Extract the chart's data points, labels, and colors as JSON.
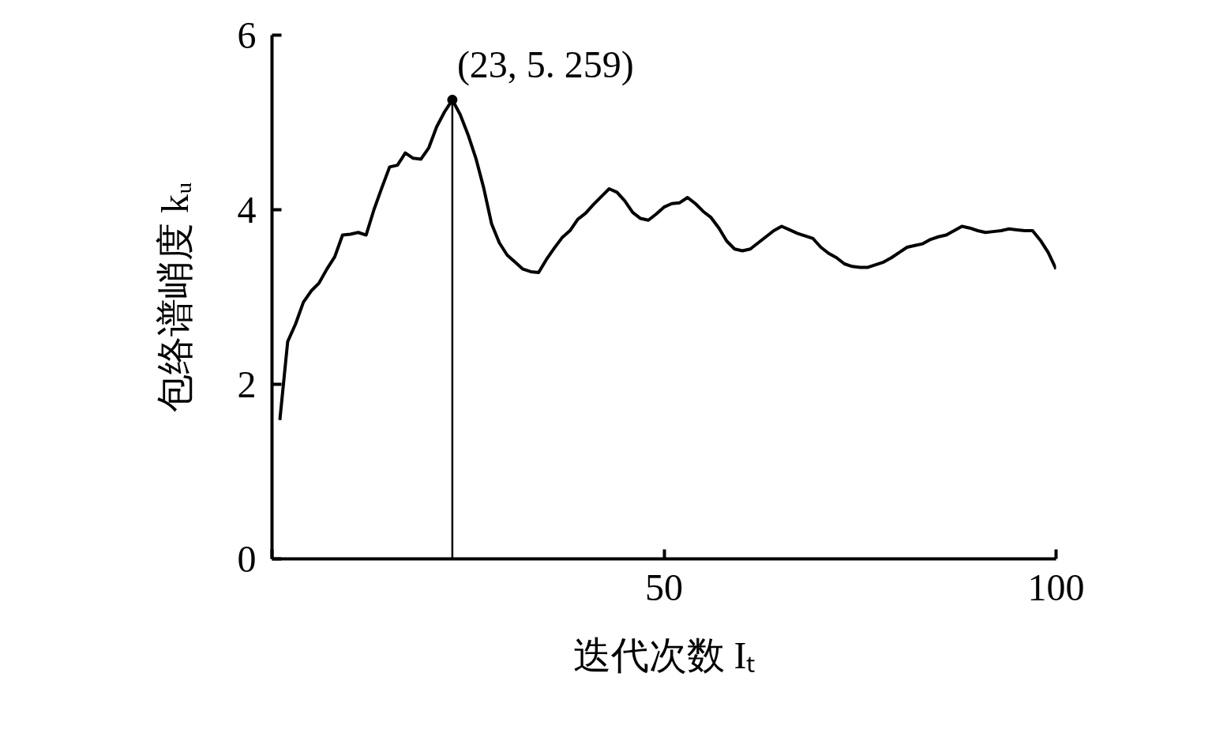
{
  "chart_data": {
    "type": "line",
    "xlabel": "迭代次数 Iₜ",
    "ylabel": "包络谱峭度 kᵤ",
    "x": [
      1,
      2,
      3,
      4,
      5,
      6,
      7,
      8,
      9,
      10,
      11,
      12,
      13,
      14,
      15,
      16,
      17,
      18,
      19,
      20,
      21,
      22,
      23,
      24,
      25,
      26,
      27,
      28,
      29,
      30,
      31,
      32,
      33,
      34,
      35,
      36,
      37,
      38,
      39,
      40,
      41,
      42,
      43,
      44,
      45,
      46,
      47,
      48,
      49,
      50,
      51,
      52,
      53,
      54,
      55,
      56,
      57,
      58,
      59,
      60,
      61,
      62,
      63,
      64,
      65,
      66,
      67,
      68,
      69,
      70,
      71,
      72,
      73,
      74,
      75,
      76,
      77,
      78,
      79,
      80,
      81,
      82,
      83,
      84,
      85,
      86,
      87,
      88,
      89,
      90,
      91,
      92,
      93,
      94,
      95,
      96,
      97,
      98,
      99,
      100
    ],
    "series": [
      {
        "color": "#000000",
        "values": [
          1.59,
          2.49,
          2.69,
          2.94,
          3.07,
          3.16,
          3.32,
          3.46,
          3.71,
          3.72,
          3.74,
          3.71,
          4.0,
          4.25,
          4.49,
          4.51,
          4.65,
          4.59,
          4.58,
          4.71,
          4.95,
          5.12,
          5.259,
          5.09,
          4.86,
          4.59,
          4.25,
          3.84,
          3.62,
          3.48,
          3.4,
          3.32,
          3.29,
          3.28,
          3.43,
          3.56,
          3.68,
          3.76,
          3.89,
          3.96,
          4.06,
          4.15,
          4.24,
          4.2,
          4.1,
          3.97,
          3.9,
          3.88,
          3.95,
          4.03,
          4.07,
          4.08,
          4.14,
          4.07,
          3.98,
          3.91,
          3.79,
          3.64,
          3.55,
          3.53,
          3.55,
          3.62,
          3.69,
          3.76,
          3.81,
          3.77,
          3.73,
          3.7,
          3.67,
          3.57,
          3.5,
          3.45,
          3.38,
          3.35,
          3.34,
          3.34,
          3.37,
          3.4,
          3.45,
          3.51,
          3.57,
          3.59,
          3.61,
          3.66,
          3.69,
          3.71,
          3.76,
          3.81,
          3.79,
          3.76,
          3.74,
          3.75,
          3.76,
          3.78,
          3.77,
          3.76,
          3.76,
          3.65,
          3.51,
          3.32
        ]
      }
    ],
    "xlim": [
      0,
      100
    ],
    "ylim": [
      0,
      6
    ],
    "xticks": [
      {
        "value": 0,
        "label": null
      },
      50,
      100
    ],
    "yticks": [
      0,
      2,
      4,
      6
    ],
    "grid": false,
    "marker": "none",
    "line_style": "solid",
    "ref_lines": [
      {
        "axis": "x",
        "value": 23,
        "color": "#000000"
      }
    ],
    "annotations": [
      {
        "text": "(23, 5. 259)",
        "x": 23,
        "y": 5.259
      }
    ]
  }
}
